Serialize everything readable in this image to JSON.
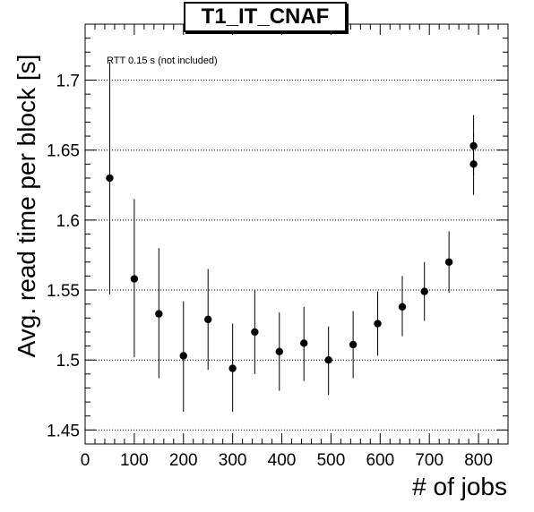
{
  "chart_data": {
    "type": "scatter",
    "title": "T1_IT_CNAF",
    "xlabel": "# of jobs",
    "ylabel": "Avg. read time per block [s]",
    "annotation": "RTT 0.15 s (not included)",
    "xlim": [
      0,
      860
    ],
    "ylim": [
      1.44,
      1.74
    ],
    "xticks": [
      0,
      100,
      200,
      300,
      400,
      500,
      600,
      700,
      800
    ],
    "yticks": [
      1.45,
      1.5,
      1.55,
      1.6,
      1.65,
      1.7
    ],
    "ytick_labels": [
      "1.45",
      "1.5",
      "1.55",
      "1.6",
      "1.65",
      "1.7"
    ],
    "grid": "horizontal-dotted",
    "series": [
      {
        "points": [
          {
            "x": 50,
            "y": 1.63,
            "lo": 1.547,
            "hi": 1.713
          },
          {
            "x": 100,
            "y": 1.558,
            "lo": 1.502,
            "hi": 1.615
          },
          {
            "x": 150,
            "y": 1.533,
            "lo": 1.487,
            "hi": 1.58
          },
          {
            "x": 200,
            "y": 1.503,
            "lo": 1.463,
            "hi": 1.542
          },
          {
            "x": 250,
            "y": 1.529,
            "lo": 1.493,
            "hi": 1.565
          },
          {
            "x": 300,
            "y": 1.494,
            "lo": 1.463,
            "hi": 1.526
          },
          {
            "x": 345,
            "y": 1.52,
            "lo": 1.49,
            "hi": 1.55
          },
          {
            "x": 395,
            "y": 1.506,
            "lo": 1.478,
            "hi": 1.534
          },
          {
            "x": 445,
            "y": 1.512,
            "lo": 1.485,
            "hi": 1.538
          },
          {
            "x": 495,
            "y": 1.5,
            "lo": 1.475,
            "hi": 1.524
          },
          {
            "x": 545,
            "y": 1.511,
            "lo": 1.487,
            "hi": 1.535
          },
          {
            "x": 595,
            "y": 1.526,
            "lo": 1.503,
            "hi": 1.549
          },
          {
            "x": 645,
            "y": 1.538,
            "lo": 1.517,
            "hi": 1.56
          },
          {
            "x": 690,
            "y": 1.549,
            "lo": 1.528,
            "hi": 1.57
          },
          {
            "x": 740,
            "y": 1.57,
            "lo": 1.548,
            "hi": 1.592
          },
          {
            "x": 790,
            "y": 1.653,
            "lo": 1.632,
            "hi": 1.675
          },
          {
            "x": 790,
            "y": 1.64,
            "lo": 1.618,
            "hi": 1.662
          }
        ]
      }
    ]
  }
}
